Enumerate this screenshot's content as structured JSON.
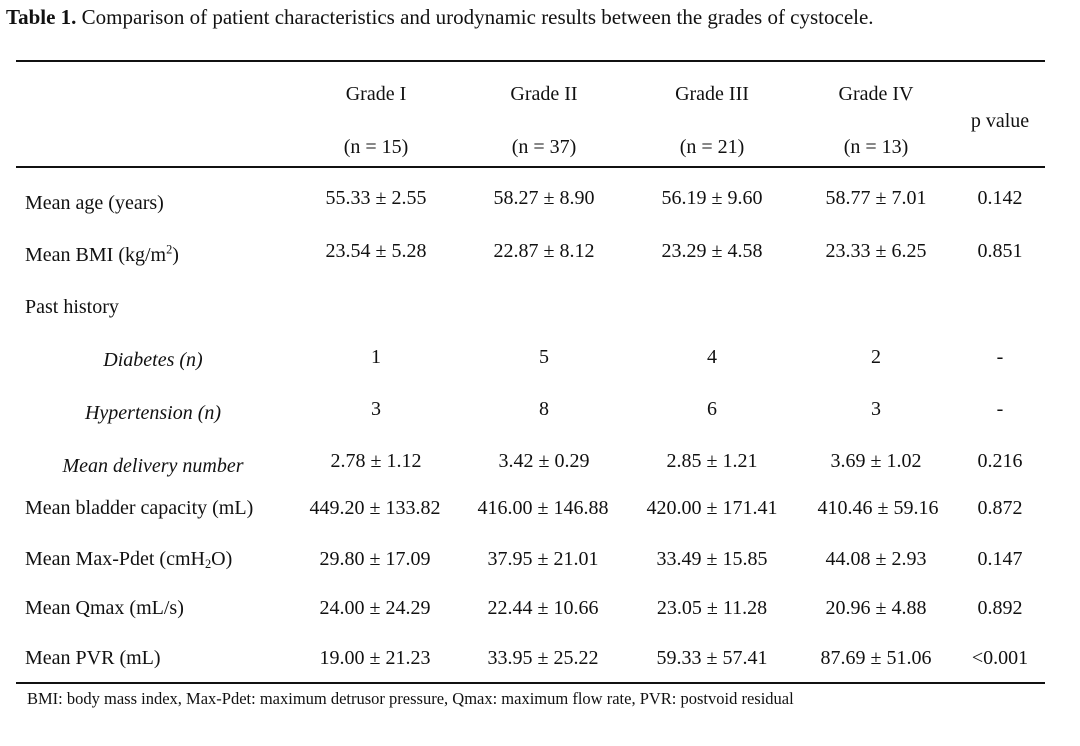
{
  "caption": {
    "label": "Table 1.",
    "text": " Comparison of patient characteristics and urodynamic results between the grades of cystocele."
  },
  "header": {
    "groups": [
      {
        "name": "Grade I",
        "n": "(n = 15)"
      },
      {
        "name": "Grade II",
        "n": "(n = 37)"
      },
      {
        "name": "Grade III",
        "n": "(n = 21)"
      },
      {
        "name": "Grade IV",
        "n": "(n = 13)"
      }
    ],
    "pvalue": "p value"
  },
  "rows": [
    {
      "label": "Mean age (years)",
      "values": [
        "55.33 ± 2.55",
        "58.27 ± 8.90",
        "56.19 ± 9.60",
        "58.77 ± 7.01"
      ],
      "p": "0.142"
    },
    {
      "label": "Mean BMI (kg/m",
      "label_sup": "2",
      "label_after": ")",
      "values": [
        "23.54 ± 5.28",
        "22.87 ± 8.12",
        "23.29 ± 4.58",
        "23.33 ± 6.25"
      ],
      "p": "0.851"
    },
    {
      "label": "Past history"
    },
    {
      "label": "Diabetes (n)",
      "values": [
        "1",
        "5",
        "4",
        "2"
      ],
      "p": "-"
    },
    {
      "label": "Hypertension (n)",
      "values": [
        "3",
        "8",
        "6",
        "3"
      ],
      "p": "-"
    },
    {
      "label": "Mean delivery number",
      "values": [
        "2.78 ± 1.12",
        "3.42 ± 0.29",
        "2.85 ± 1.21",
        "3.69 ± 1.02"
      ],
      "p": "0.216"
    },
    {
      "label": "Mean bladder capacity (mL)",
      "values": [
        "449.20 ± 133.82",
        "416.00 ± 146.88",
        "420.00 ± 171.41",
        "410.46 ± 59.16"
      ],
      "p": "0.872"
    },
    {
      "label": "Mean Max-Pdet (cmH",
      "label_sub": "2",
      "label_after": "O)",
      "values": [
        "29.80 ± 17.09",
        "37.95 ± 21.01",
        "33.49 ± 15.85",
        "44.08 ± 2.93"
      ],
      "p": "0.147"
    },
    {
      "label": "Mean Qmax (mL/s)",
      "values": [
        "24.00 ± 24.29",
        "22.44 ± 10.66",
        "23.05 ± 11.28",
        "20.96 ± 4.88"
      ],
      "p": "0.892"
    },
    {
      "label": "Mean PVR (mL)",
      "values": [
        "19.00 ± 21.23",
        "33.95 ± 25.22",
        "59.33 ± 57.41",
        "87.69 ± 51.06"
      ],
      "p": "<0.001"
    }
  ],
  "footnote": "BMI: body mass index, Max-Pdet: maximum detrusor pressure, Qmax: maximum flow rate, PVR: postvoid residual"
}
